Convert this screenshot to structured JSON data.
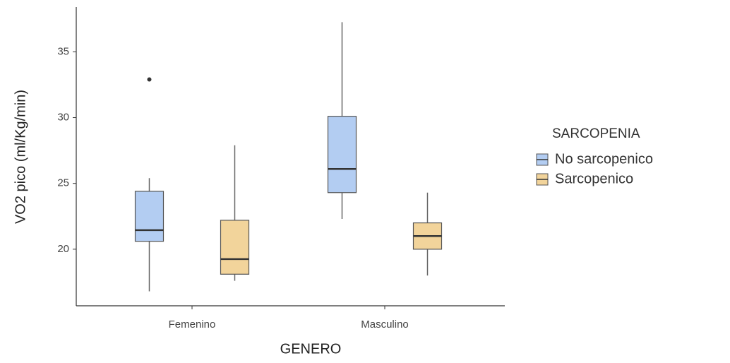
{
  "chart_data": {
    "type": "box",
    "x_label": "GENERO",
    "y_label": "VO2 pico (ml/Kg/min)",
    "categories": [
      "Femenino",
      "Masculino"
    ],
    "legend_title": "SARCOPENIA",
    "series": [
      {
        "name": "No sarcopenico",
        "color": "#b3cdf2",
        "min": [
          16.8,
          22.3
        ],
        "q1": [
          20.6,
          24.3
        ],
        "median": [
          21.45,
          26.1
        ],
        "q3": [
          24.4,
          30.1
        ],
        "max": [
          25.4,
          37.25
        ],
        "outliers": [
          [
            32.9
          ],
          []
        ]
      },
      {
        "name": "Sarcopenico",
        "color": "#f2d49b",
        "min": [
          17.6,
          18.0
        ],
        "q1": [
          18.1,
          20.0
        ],
        "median": [
          19.25,
          21.0
        ],
        "q3": [
          22.2,
          22.0
        ],
        "max": [
          27.9,
          24.3
        ],
        "outliers": [
          [],
          []
        ]
      }
    ],
    "ylim": [
      15.7,
      38.4
    ],
    "yticks": [
      20,
      25,
      30,
      35
    ]
  }
}
